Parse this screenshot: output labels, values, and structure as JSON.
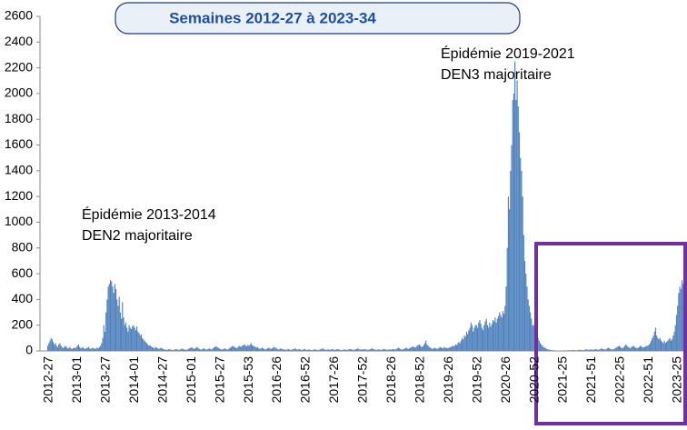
{
  "chart_data": {
    "type": "bar",
    "title": "Semaines 2012-27 à 2023-34",
    "annotations": [
      [
        "Épidémie 2013-2014",
        "DEN2 majoritaire"
      ],
      [
        "Épidémie 2019-2021",
        "DEN3 majoritaire"
      ]
    ],
    "color": "#4f81bd",
    "ylim": [
      0,
      2600
    ],
    "yticks": [
      0,
      200,
      400,
      600,
      800,
      1000,
      1200,
      1400,
      1600,
      1800,
      2000,
      2200,
      2400,
      2600
    ],
    "categories": [
      "2012-27",
      null,
      null,
      null,
      null,
      null,
      null,
      null,
      null,
      null,
      null,
      null,
      null,
      null,
      null,
      null,
      null,
      null,
      null,
      null,
      null,
      null,
      null,
      null,
      null,
      null,
      "2013-01",
      null,
      null,
      null,
      null,
      null,
      null,
      null,
      null,
      null,
      null,
      null,
      null,
      null,
      null,
      null,
      null,
      null,
      null,
      null,
      null,
      null,
      null,
      null,
      null,
      null,
      "2013-27",
      null,
      null,
      null,
      null,
      null,
      null,
      null,
      null,
      null,
      null,
      null,
      null,
      null,
      null,
      null,
      null,
      null,
      null,
      null,
      null,
      null,
      null,
      null,
      null,
      null,
      "2014-01",
      null,
      null,
      null,
      null,
      null,
      null,
      null,
      null,
      null,
      null,
      null,
      null,
      null,
      null,
      null,
      null,
      null,
      null,
      null,
      null,
      null,
      null,
      null,
      null,
      null,
      "2014-27",
      null,
      null,
      null,
      null,
      null,
      null,
      null,
      null,
      null,
      null,
      null,
      null,
      null,
      null,
      null,
      null,
      null,
      null,
      null,
      null,
      null,
      null,
      null,
      null,
      null,
      "2015-01",
      null,
      null,
      null,
      null,
      null,
      null,
      null,
      null,
      null,
      null,
      null,
      null,
      null,
      null,
      null,
      null,
      null,
      null,
      null,
      null,
      null,
      null,
      null,
      null,
      null,
      "2015-27",
      null,
      null,
      null,
      null,
      null,
      null,
      null,
      null,
      null,
      null,
      null,
      null,
      null,
      null,
      null,
      null,
      null,
      null,
      null,
      null,
      null,
      null,
      null,
      null,
      null,
      "2015-53",
      null,
      null,
      null,
      null,
      null,
      null,
      null,
      null,
      null,
      null,
      null,
      null,
      null,
      null,
      null,
      null,
      null,
      null,
      null,
      null,
      null,
      null,
      null,
      null,
      null,
      "2016-26",
      null,
      null,
      null,
      null,
      null,
      null,
      null,
      null,
      null,
      null,
      null,
      null,
      null,
      null,
      null,
      null,
      null,
      null,
      null,
      null,
      null,
      null,
      null,
      null,
      null,
      "2016-52",
      null,
      null,
      null,
      null,
      null,
      null,
      null,
      null,
      null,
      null,
      null,
      null,
      null,
      null,
      null,
      null,
      null,
      null,
      null,
      null,
      null,
      null,
      null,
      null,
      null,
      "2017-26",
      null,
      null,
      null,
      null,
      null,
      null,
      null,
      null,
      null,
      null,
      null,
      null,
      null,
      null,
      null,
      null,
      null,
      null,
      null,
      null,
      null,
      null,
      null,
      null,
      null,
      "2017-52",
      null,
      null,
      null,
      null,
      null,
      null,
      null,
      null,
      null,
      null,
      null,
      null,
      null,
      null,
      null,
      null,
      null,
      null,
      null,
      null,
      null,
      null,
      null,
      null,
      null,
      "2018-26",
      null,
      null,
      null,
      null,
      null,
      null,
      null,
      null,
      null,
      null,
      null,
      null,
      null,
      null,
      null,
      null,
      null,
      null,
      null,
      null,
      null,
      null,
      null,
      null,
      null,
      "2018-52",
      null,
      null,
      null,
      null,
      null,
      null,
      null,
      null,
      null,
      null,
      null,
      null,
      null,
      null,
      null,
      null,
      null,
      null,
      null,
      null,
      null,
      null,
      null,
      null,
      null,
      "2019-26",
      null,
      null,
      null,
      null,
      null,
      null,
      null,
      null,
      null,
      null,
      null,
      null,
      null,
      null,
      null,
      null,
      null,
      null,
      null,
      null,
      null,
      null,
      null,
      null,
      null,
      "2019-52",
      null,
      null,
      null,
      null,
      null,
      null,
      null,
      null,
      null,
      null,
      null,
      null,
      null,
      null,
      null,
      null,
      null,
      null,
      null,
      null,
      null,
      null,
      null,
      null,
      null,
      "2020-26",
      null,
      null,
      null,
      null,
      null,
      null,
      null,
      null,
      null,
      null,
      null,
      null,
      null,
      null,
      null,
      null,
      null,
      null,
      null,
      null,
      null,
      null,
      null,
      null,
      null,
      "2020-52",
      null,
      null,
      null,
      null,
      null,
      null,
      null,
      null,
      null,
      null,
      null,
      null,
      null,
      null,
      null,
      null,
      null,
      null,
      null,
      null,
      null,
      null,
      null,
      null,
      null,
      "2021-25",
      null,
      null,
      null,
      null,
      null,
      null,
      null,
      null,
      null,
      null,
      null,
      null,
      null,
      null,
      null,
      null,
      null,
      null,
      null,
      null,
      null,
      null,
      null,
      null,
      null,
      "2021-51",
      null,
      null,
      null,
      null,
      null,
      null,
      null,
      null,
      null,
      null,
      null,
      null,
      null,
      null,
      null,
      null,
      null,
      null,
      null,
      null,
      null,
      null,
      null,
      null,
      null,
      "2022-25",
      null,
      null,
      null,
      null,
      null,
      null,
      null,
      null,
      null,
      null,
      null,
      null,
      null,
      null,
      null,
      null,
      null,
      null,
      null,
      null,
      null,
      null,
      null,
      null,
      null,
      "2022-51",
      null,
      null,
      null,
      null,
      null,
      null,
      null,
      null,
      null,
      null,
      null,
      null,
      null,
      null,
      null,
      null,
      null,
      null,
      null,
      null,
      null,
      null,
      null,
      null,
      null,
      "2023-25",
      null,
      null,
      null,
      null,
      null,
      null,
      null,
      null,
      null
    ],
    "values": [
      40,
      60,
      80,
      100,
      90,
      70,
      50,
      60,
      40,
      30,
      50,
      60,
      40,
      30,
      20,
      30,
      40,
      30,
      20,
      20,
      30,
      20,
      15,
      20,
      25,
      20,
      30,
      40,
      50,
      30,
      20,
      25,
      30,
      20,
      15,
      20,
      25,
      30,
      20,
      15,
      20,
      25,
      20,
      15,
      20,
      25,
      20,
      30,
      40,
      60,
      100,
      200,
      150,
      300,
      400,
      500,
      520,
      550,
      540,
      500,
      450,
      520,
      480,
      400,
      350,
      420,
      300,
      250,
      380,
      260,
      200,
      220,
      180,
      150,
      200,
      180,
      170,
      190,
      200,
      180,
      160,
      190,
      150,
      140,
      120,
      130,
      100,
      90,
      80,
      70,
      60,
      50,
      40,
      45,
      35,
      30,
      25,
      20,
      30,
      25,
      20,
      15,
      20,
      25,
      20,
      15,
      10,
      12,
      8,
      10,
      15,
      12,
      10,
      8,
      6,
      10,
      12,
      15,
      10,
      8,
      10,
      12,
      20,
      15,
      10,
      12,
      8,
      10,
      15,
      20,
      25,
      30,
      20,
      15,
      20,
      25,
      30,
      20,
      15,
      10,
      12,
      15,
      20,
      15,
      10,
      12,
      15,
      20,
      15,
      10,
      20,
      25,
      30,
      35,
      30,
      25,
      20,
      15,
      10,
      12,
      15,
      20,
      15,
      10,
      12,
      20,
      25,
      30,
      40,
      35,
      30,
      25,
      20,
      30,
      40,
      35,
      30,
      40,
      45,
      50,
      40,
      35,
      45,
      40,
      50,
      60,
      45,
      40,
      35,
      30,
      25,
      30,
      20,
      15,
      20,
      25,
      20,
      15,
      10,
      15,
      20,
      25,
      20,
      15,
      20,
      25,
      30,
      25,
      20,
      15,
      10,
      15,
      20,
      15,
      10,
      12,
      10,
      8,
      12,
      15,
      10,
      8,
      10,
      12,
      15,
      20,
      15,
      10,
      12,
      15,
      10,
      8,
      10,
      12,
      15,
      10,
      8,
      10,
      12,
      8,
      6,
      8,
      10,
      12,
      10,
      8,
      6,
      10,
      12,
      15,
      20,
      15,
      10,
      8,
      10,
      12,
      10,
      8,
      12,
      15,
      10,
      8,
      10,
      12,
      15,
      10,
      8,
      6,
      8,
      10,
      12,
      10,
      8,
      10,
      12,
      15,
      12,
      10,
      8,
      10,
      12,
      15,
      20,
      15,
      10,
      12,
      10,
      12,
      15,
      12,
      10,
      8,
      10,
      12,
      15,
      20,
      15,
      12,
      10,
      8,
      10,
      12,
      10,
      8,
      10,
      12,
      15,
      12,
      10,
      8,
      10,
      12,
      10,
      12,
      15,
      12,
      10,
      15,
      20,
      25,
      20,
      15,
      10,
      12,
      15,
      20,
      25,
      20,
      15,
      20,
      25,
      30,
      35,
      30,
      25,
      30,
      40,
      45,
      50,
      40,
      30,
      35,
      45,
      60,
      80,
      50,
      40,
      30,
      25,
      20,
      15,
      20,
      25,
      20,
      15,
      20,
      25,
      30,
      25,
      20,
      25,
      30,
      20,
      25,
      20,
      25,
      30,
      30,
      40,
      35,
      40,
      50,
      45,
      60,
      70,
      60,
      80,
      100,
      90,
      120,
      110,
      150,
      130,
      160,
      180,
      220,
      200,
      150,
      180,
      200,
      200,
      180,
      220,
      240,
      210,
      180,
      160,
      200,
      230,
      250,
      200,
      180,
      220,
      190,
      210,
      240,
      230,
      260,
      220,
      250,
      270,
      300,
      280,
      260,
      310,
      290,
      350,
      500,
      800,
      1200,
      1100,
      1400,
      1600,
      1950,
      2000,
      2250,
      1950,
      2100,
      1900,
      1700,
      1500,
      1400,
      1200,
      900,
      700,
      600,
      500,
      400,
      350,
      300,
      250,
      200,
      200,
      180,
      150,
      120,
      100,
      80,
      60,
      50,
      40,
      30,
      25,
      20,
      15,
      12,
      10,
      8,
      6,
      5,
      5,
      4,
      3,
      4,
      3,
      2,
      3,
      4,
      3,
      4,
      5,
      4,
      3,
      5,
      6,
      5,
      4,
      6,
      8,
      6,
      5,
      4,
      6,
      8,
      10,
      8,
      6,
      5,
      8,
      10,
      12,
      10,
      8,
      10,
      12,
      10,
      8,
      10,
      15,
      12,
      10,
      8,
      12,
      15,
      20,
      15,
      12,
      10,
      15,
      20,
      25,
      20,
      15,
      12,
      10,
      15,
      20,
      25,
      30,
      35,
      40,
      30,
      25,
      20,
      30,
      40,
      50,
      40,
      30,
      25,
      20,
      30,
      35,
      40,
      30,
      25,
      20,
      25,
      30,
      40,
      35,
      30,
      25,
      30,
      35,
      40,
      40,
      50,
      60,
      80,
      100,
      120,
      150,
      180,
      120,
      100,
      90,
      100,
      80,
      70,
      60,
      80,
      60,
      70,
      80,
      90,
      100,
      80,
      90,
      120,
      150,
      200,
      280,
      350,
      450,
      500,
      480,
      550,
      520,
      600,
      660,
      500
    ]
  }
}
